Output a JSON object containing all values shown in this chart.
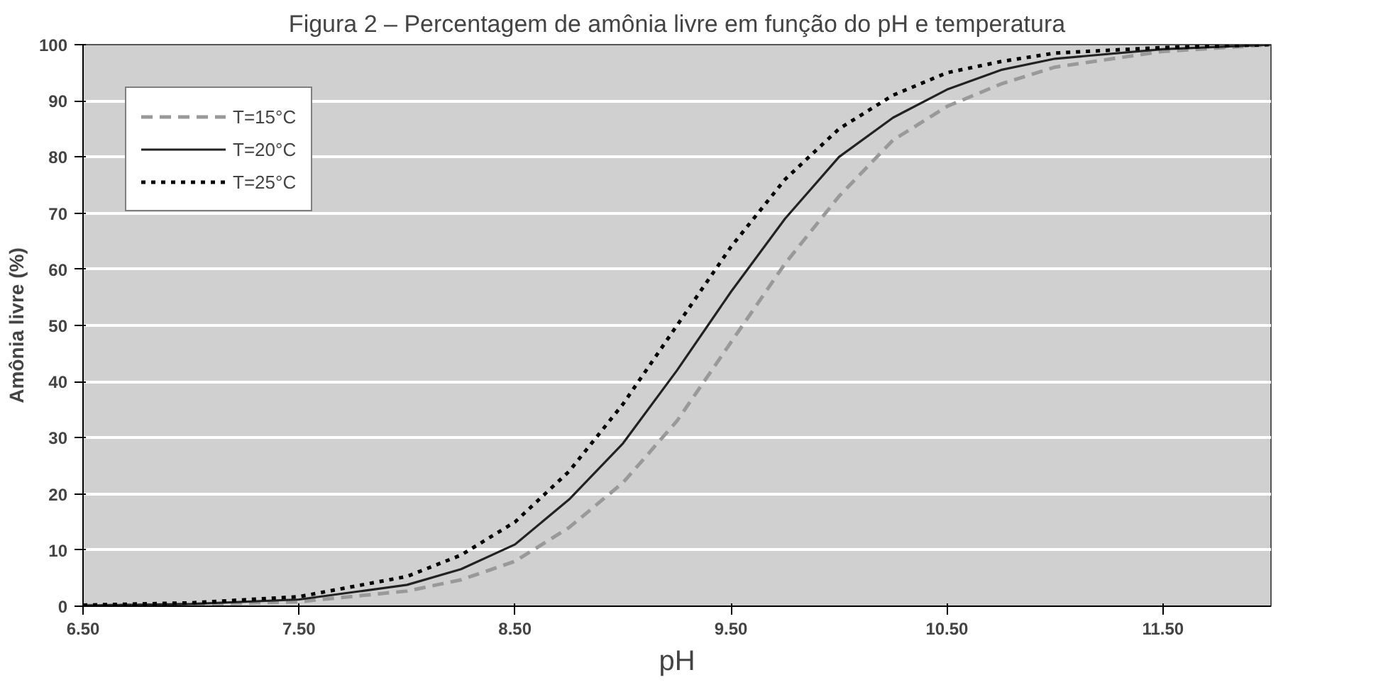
{
  "chart_data": {
    "type": "line",
    "title": "Figura 2 – Percentagem de amônia livre em função do pH e temperatura",
    "xlabel": "pH",
    "ylabel": "Amônia livre (%)",
    "x": [
      6.5,
      7,
      7.5,
      8,
      8.25,
      8.5,
      8.75,
      9,
      9.25,
      9.5,
      9.75,
      10,
      10.25,
      10.5,
      10.75,
      11,
      11.5,
      12
    ],
    "series": [
      {
        "name": "T=15°C",
        "color": "#999999",
        "line_style": "dashed",
        "values": [
          0.1,
          0.3,
          0.8,
          2.7,
          4.7,
          8,
          14,
          22,
          33,
          47,
          61,
          73,
          83,
          89,
          93,
          96,
          98.8,
          100
        ]
      },
      {
        "name": "T=20°C",
        "color": "#222222",
        "line_style": "solid",
        "values": [
          0.1,
          0.4,
          1.2,
          3.8,
          6.6,
          11,
          19,
          29,
          42,
          56,
          69,
          80,
          87,
          92,
          95.5,
          97.5,
          99.2,
          100
        ]
      },
      {
        "name": "T=25°C",
        "color": "#000000",
        "line_style": "dotted",
        "values": [
          0.2,
          0.6,
          1.7,
          5.3,
          9.1,
          15,
          24,
          36,
          50,
          64,
          76,
          85,
          91,
          95,
          97,
          98.5,
          99.5,
          100
        ]
      }
    ],
    "xlim": [
      6.5,
      12
    ],
    "ylim": [
      0,
      100
    ],
    "xticks": [
      {
        "value": 6.5,
        "label": "6.50"
      },
      {
        "value": 7.5,
        "label": "7.50"
      },
      {
        "value": 8.5,
        "label": "8.50"
      },
      {
        "value": 9.5,
        "label": "9.50"
      },
      {
        "value": 10.5,
        "label": "10.50"
      },
      {
        "value": 11.5,
        "label": "11.50"
      }
    ],
    "yticks": [
      0,
      10,
      20,
      30,
      40,
      50,
      60,
      70,
      80,
      90,
      100
    ],
    "grid": "y",
    "legend": "top left"
  }
}
